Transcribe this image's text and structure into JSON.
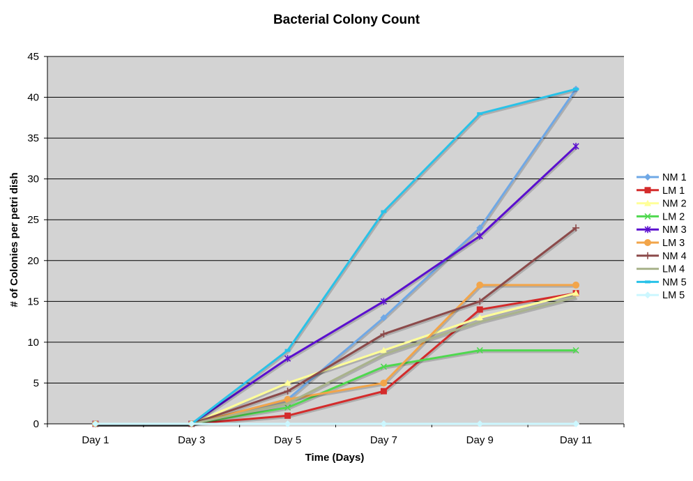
{
  "chart_data": {
    "type": "line",
    "title": "Bacterial Colony Count",
    "xlabel": "Time (Days)",
    "ylabel": "# of Colonies per petri dish",
    "categories": [
      "Day 1",
      "Day 3",
      "Day 5",
      "Day 7",
      "Day 9",
      "Day 11"
    ],
    "ylim": [
      0,
      45
    ],
    "yticks": [
      0,
      5,
      10,
      15,
      20,
      25,
      30,
      35,
      40,
      45
    ],
    "grid": "horizontal",
    "plot_background": "#d3d3d3",
    "legend_position": "right",
    "series": [
      {
        "name": "NM 1",
        "color": "#6fa8e6",
        "marker": "diamond",
        "values": [
          0,
          0,
          3,
          13,
          24,
          41
        ]
      },
      {
        "name": "LM 1",
        "color": "#d42b2b",
        "marker": "square",
        "values": [
          0,
          0,
          1,
          4,
          14,
          16
        ]
      },
      {
        "name": "NM 2",
        "color": "#ffff99",
        "marker": "triangle",
        "values": [
          0,
          0,
          5,
          9,
          13,
          16
        ]
      },
      {
        "name": "LM 2",
        "color": "#4fd84f",
        "marker": "x",
        "values": [
          0,
          0,
          2,
          7,
          9,
          9
        ]
      },
      {
        "name": "NM 3",
        "color": "#5b0fcf",
        "marker": "star",
        "values": [
          0,
          0,
          8,
          15,
          23,
          34
        ]
      },
      {
        "name": "LM 3",
        "color": "#f2a54a",
        "marker": "circle",
        "values": [
          0,
          0,
          3,
          5,
          17,
          17
        ]
      },
      {
        "name": "NM 4",
        "color": "#8c4a4a",
        "marker": "plus",
        "values": [
          0,
          0,
          4,
          11,
          15,
          24
        ]
      },
      {
        "name": "LM 4",
        "color": "#a9b38c",
        "marker": "none",
        "values": [
          0,
          0,
          2.5,
          8.5,
          12.5,
          15.5
        ]
      },
      {
        "name": "NM 5",
        "color": "#29c2e8",
        "marker": "bar",
        "values": [
          0,
          0,
          9,
          26,
          38,
          41
        ]
      },
      {
        "name": "LM 5",
        "color": "#ccf7ff",
        "marker": "diamond",
        "values": [
          0,
          0,
          0,
          0,
          0,
          0
        ]
      }
    ]
  }
}
